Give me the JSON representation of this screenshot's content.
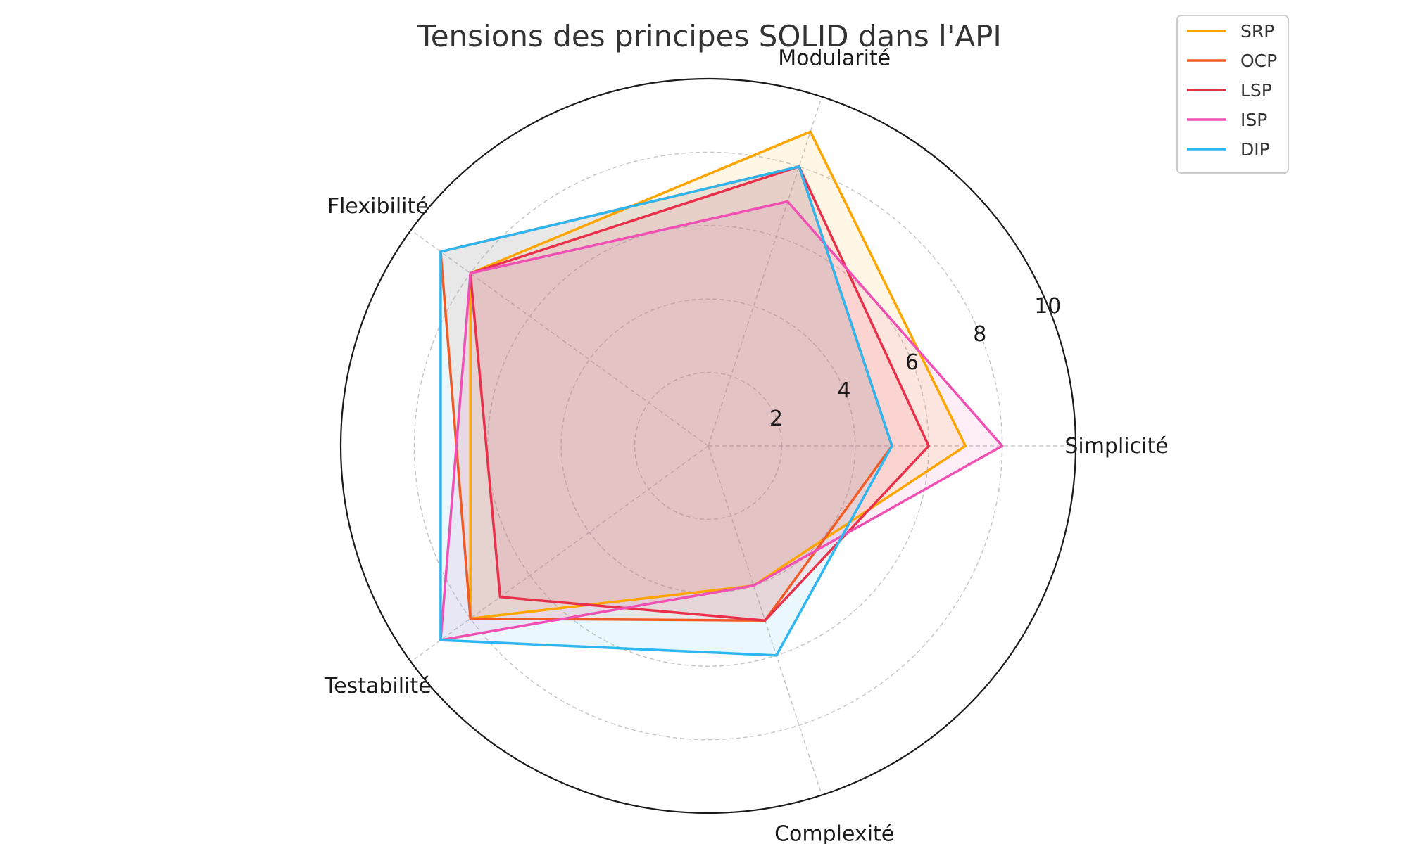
{
  "chart_data": {
    "type": "radar",
    "title": "Tensions des principes SOLID dans l'API",
    "axes": [
      "Simplicité",
      "Modularité",
      "Flexibilité",
      "Testabilité",
      "Complexité"
    ],
    "rlim": [
      0,
      10
    ],
    "rticks": [
      "2",
      "4",
      "6",
      "8",
      "10"
    ],
    "grid": true,
    "legend_position": "top-right",
    "series": [
      {
        "name": "SRP",
        "color": "#FFA500",
        "values": [
          7,
          9,
          8,
          8,
          4
        ]
      },
      {
        "name": "OCP",
        "color": "#F05A24",
        "values": [
          5,
          8,
          9,
          8,
          5
        ]
      },
      {
        "name": "LSP",
        "color": "#E8304A",
        "values": [
          6,
          8,
          8,
          7,
          5
        ]
      },
      {
        "name": "ISP",
        "color": "#F050B4",
        "values": [
          8,
          7,
          8,
          9,
          4
        ]
      },
      {
        "name": "DIP",
        "color": "#2EB6F0",
        "values": [
          5,
          8,
          9,
          9,
          6
        ]
      }
    ]
  }
}
